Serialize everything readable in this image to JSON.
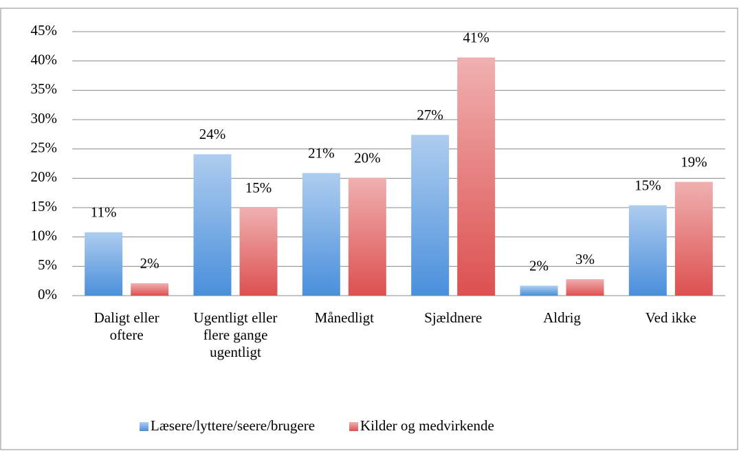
{
  "chart_data": {
    "type": "bar",
    "categories": [
      "Daligt eller oftere",
      "Ugentligt eller flere gange ugentligt",
      "Månedligt",
      "Sjældnere",
      "Aldrig",
      "Ved ikke"
    ],
    "series": [
      {
        "name": "Læsere/lyttere/seere/brugere",
        "color": "#4a8fdc",
        "values": [
          10.8,
          24.1,
          20.9,
          27.4,
          1.7,
          15.4
        ],
        "value_labels": [
          "11%",
          "24%",
          "21%",
          "27%",
          "2%",
          "15%"
        ]
      },
      {
        "name": "Kilder og medvirkende",
        "color": "#dd5050",
        "values": [
          2.1,
          15.0,
          20.1,
          40.6,
          2.8,
          19.4
        ],
        "value_labels": [
          "2%",
          "15%",
          "20%",
          "41%",
          "3%",
          "19%"
        ]
      }
    ],
    "ylim": [
      0,
      45
    ],
    "yticks": [
      {
        "value": 0,
        "label": "0%"
      },
      {
        "value": 5,
        "label": "5%"
      },
      {
        "value": 10,
        "label": "10%"
      },
      {
        "value": 15,
        "label": "15%"
      },
      {
        "value": 20,
        "label": "20%"
      },
      {
        "value": 25,
        "label": "25%"
      },
      {
        "value": 30,
        "label": "30%"
      },
      {
        "value": 35,
        "label": "35%"
      },
      {
        "value": 40,
        "label": "40%"
      },
      {
        "value": 45,
        "label": "45%"
      }
    ],
    "grid": true,
    "legend": "bottom"
  }
}
